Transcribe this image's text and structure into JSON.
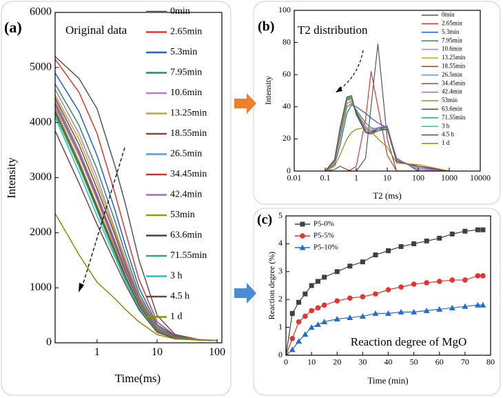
{
  "chart_data": [
    {
      "type": "line",
      "panel_label": "(a)",
      "title": "Original data",
      "x_label": "Time(ms)",
      "y_label": "Intensity",
      "xscale": "log",
      "xlim": [
        0.2,
        120
      ],
      "xticks": [
        1,
        10,
        100
      ],
      "ylim": [
        0,
        6000
      ],
      "yticks": [
        0,
        1000,
        2000,
        3000,
        4000,
        5000,
        6000
      ],
      "x": [
        0.2,
        0.5,
        1,
        2,
        3,
        5,
        10,
        20,
        50,
        100
      ],
      "series": [
        {
          "name": "0min",
          "color": "#555555",
          "values": [
            5200,
            4800,
            4250,
            3200,
            2500,
            1500,
            500,
            150,
            60,
            40
          ]
        },
        {
          "name": "2.65min",
          "color": "#e8322e",
          "values": [
            5150,
            4550,
            3800,
            2700,
            2000,
            1150,
            380,
            130,
            60,
            40
          ]
        },
        {
          "name": "5.3min",
          "color": "#1f5fd0",
          "values": [
            4900,
            4200,
            3400,
            2400,
            1750,
            1000,
            330,
            120,
            60,
            40
          ]
        },
        {
          "name": "7.95min",
          "color": "#2e8b57",
          "values": [
            4700,
            3950,
            3150,
            2200,
            1600,
            900,
            300,
            110,
            60,
            40
          ]
        },
        {
          "name": "10.6min",
          "color": "#b57bd6",
          "values": [
            4600,
            3800,
            3000,
            2050,
            1500,
            850,
            280,
            100,
            60,
            40
          ]
        },
        {
          "name": "13.25min",
          "color": "#d4a017",
          "values": [
            4500,
            3700,
            2900,
            2000,
            1450,
            820,
            270,
            100,
            60,
            40
          ]
        },
        {
          "name": "18.55min",
          "color": "#7a4a3a",
          "values": [
            4450,
            3600,
            2800,
            1950,
            1400,
            800,
            260,
            100,
            55,
            40
          ]
        },
        {
          "name": "26.5min",
          "color": "#5b9bd5",
          "values": [
            4400,
            3500,
            2700,
            1850,
            1350,
            780,
            250,
            95,
            55,
            40
          ]
        },
        {
          "name": "34.45min",
          "color": "#c0392b",
          "values": [
            4350,
            3450,
            2650,
            1800,
            1300,
            750,
            240,
            95,
            55,
            40
          ]
        },
        {
          "name": "42.4min",
          "color": "#9b6bd6",
          "values": [
            4300,
            3400,
            2600,
            1750,
            1250,
            720,
            230,
            90,
            55,
            40
          ]
        },
        {
          "name": "53min",
          "color": "#9a9a00",
          "values": [
            4250,
            3300,
            2500,
            1700,
            1200,
            700,
            220,
            90,
            55,
            40
          ]
        },
        {
          "name": "63.6min",
          "color": "#444444",
          "values": [
            4200,
            3250,
            2450,
            1650,
            1180,
            680,
            210,
            85,
            50,
            40
          ]
        },
        {
          "name": "71.55min",
          "color": "#2eaa6e",
          "values": [
            4150,
            3200,
            2400,
            1600,
            1150,
            660,
            200,
            85,
            50,
            40
          ]
        },
        {
          "name": "3 h",
          "color": "#20c0c0",
          "values": [
            4100,
            3100,
            2300,
            1550,
            1100,
            630,
            200,
            80,
            50,
            40
          ]
        },
        {
          "name": "4.5 h",
          "color": "#7a4040",
          "values": [
            3850,
            2900,
            2150,
            1450,
            1050,
            600,
            190,
            80,
            50,
            40
          ]
        },
        {
          "name": "1 d",
          "color": "#8b8b00",
          "values": [
            2350,
            1600,
            1100,
            800,
            600,
            380,
            150,
            70,
            50,
            40
          ]
        }
      ]
    },
    {
      "type": "line",
      "panel_label": "(b)",
      "title": "T2 distribution",
      "x_label": "T2 (ms)",
      "y_label": "Intensity",
      "xscale": "log",
      "xlim": [
        0.01,
        10000
      ],
      "xticks": [
        0.01,
        0.1,
        1,
        10,
        100,
        1000,
        10000
      ],
      "ylim": [
        0,
        100
      ],
      "yticks": [
        0,
        20,
        40,
        60,
        80,
        100
      ],
      "x": [
        0.1,
        0.2,
        0.3,
        0.5,
        0.7,
        1,
        2,
        3,
        5,
        10,
        20,
        100,
        1000
      ],
      "series": [
        {
          "name": "0min",
          "color": "#555555",
          "values": [
            0,
            1,
            3,
            1,
            0,
            0,
            8,
            40,
            79,
            20,
            0,
            0,
            0
          ]
        },
        {
          "name": "2.65min",
          "color": "#e8322e",
          "values": [
            0,
            0,
            0,
            0,
            1,
            3,
            32,
            62,
            40,
            10,
            0,
            0,
            0
          ]
        },
        {
          "name": "5.3min",
          "color": "#1f5fd0",
          "values": [
            0,
            4,
            16,
            36,
            41,
            40,
            36,
            33,
            30,
            27,
            8,
            0,
            0
          ]
        },
        {
          "name": "7.95min",
          "color": "#2e8b57",
          "values": [
            0,
            5,
            20,
            40,
            42,
            38,
            30,
            27,
            26,
            26,
            7,
            1,
            0
          ]
        },
        {
          "name": "10.6min",
          "color": "#b57bd6",
          "values": [
            0,
            5,
            22,
            42,
            43,
            37,
            28,
            26,
            27,
            27,
            7,
            1,
            0
          ]
        },
        {
          "name": "13.25min",
          "color": "#d4a017",
          "values": [
            0,
            5,
            22,
            42,
            44,
            37,
            27,
            25,
            26,
            27,
            7,
            2,
            0
          ]
        },
        {
          "name": "18.55min",
          "color": "#7a4a3a",
          "values": [
            0,
            6,
            24,
            44,
            45,
            37,
            26,
            25,
            26,
            28,
            7,
            2,
            0
          ]
        },
        {
          "name": "26.5min",
          "color": "#5b9bd5",
          "values": [
            0,
            6,
            24,
            45,
            45,
            36,
            26,
            25,
            27,
            28,
            7,
            2,
            0
          ]
        },
        {
          "name": "34.45min",
          "color": "#c0392b",
          "values": [
            0,
            6,
            25,
            45,
            45,
            36,
            25,
            24,
            27,
            28,
            7,
            2,
            0
          ]
        },
        {
          "name": "42.4min",
          "color": "#9b6bd6",
          "values": [
            0,
            6,
            25,
            45,
            45,
            36,
            25,
            24,
            27,
            28,
            7,
            2,
            0
          ]
        },
        {
          "name": "53min",
          "color": "#9a9a00",
          "values": [
            0,
            7,
            26,
            46,
            45,
            35,
            24,
            24,
            26,
            27,
            6,
            3,
            0
          ]
        },
        {
          "name": "63.6min",
          "color": "#444444",
          "values": [
            0,
            7,
            26,
            46,
            46,
            35,
            24,
            24,
            26,
            27,
            6,
            3,
            0
          ]
        },
        {
          "name": "71.55min",
          "color": "#2eaa6e",
          "values": [
            0,
            7,
            26,
            46,
            46,
            35,
            24,
            23,
            26,
            27,
            6,
            3,
            0
          ]
        },
        {
          "name": "3 h",
          "color": "#20c0c0",
          "values": [
            0,
            7,
            26,
            45,
            46,
            35,
            24,
            23,
            25,
            26,
            6,
            3,
            0
          ]
        },
        {
          "name": "4.5 h",
          "color": "#7a4040",
          "values": [
            0,
            7,
            27,
            46,
            47,
            36,
            24,
            23,
            25,
            26,
            6,
            3,
            0
          ]
        },
        {
          "name": "1 d",
          "color": "#8b8b00",
          "values": [
            0,
            3,
            10,
            20,
            24,
            26,
            27,
            25,
            20,
            15,
            5,
            4,
            0
          ]
        }
      ]
    },
    {
      "type": "line",
      "panel_label": "(c)",
      "annotation": "Reaction degree of MgO",
      "x_label": "Time (min)",
      "y_label": "Reaction degree (%)",
      "xscale": "linear",
      "xlim": [
        0,
        80
      ],
      "xticks": [
        0,
        10,
        20,
        30,
        40,
        50,
        60,
        70,
        80
      ],
      "ylim": [
        0,
        5
      ],
      "yticks": [
        0,
        1,
        2,
        3,
        4,
        5
      ],
      "x": [
        0,
        2.5,
        5,
        7.5,
        10,
        12.5,
        15,
        20,
        25,
        30,
        35,
        40,
        45,
        50,
        55,
        60,
        65,
        70,
        75,
        77
      ],
      "series": [
        {
          "name": "P5-0%",
          "color": "#404040",
          "marker": "square",
          "values": [
            0,
            1.5,
            1.9,
            2.2,
            2.5,
            2.65,
            2.8,
            3.0,
            3.2,
            3.35,
            3.6,
            3.75,
            3.9,
            4.0,
            4.1,
            4.2,
            4.35,
            4.45,
            4.5,
            4.5
          ]
        },
        {
          "name": "P5-5%",
          "color": "#e8322e",
          "marker": "circle",
          "values": [
            0,
            0.6,
            1.2,
            1.4,
            1.6,
            1.7,
            1.8,
            1.95,
            2.05,
            2.1,
            2.2,
            2.35,
            2.45,
            2.55,
            2.6,
            2.65,
            2.7,
            2.7,
            2.85,
            2.85
          ]
        },
        {
          "name": "P5-10%",
          "color": "#1f6fd0",
          "marker": "triangle",
          "values": [
            0,
            0.2,
            0.5,
            0.75,
            1.0,
            1.1,
            1.2,
            1.3,
            1.35,
            1.4,
            1.5,
            1.5,
            1.55,
            1.55,
            1.6,
            1.65,
            1.7,
            1.75,
            1.8,
            1.8
          ]
        }
      ]
    }
  ]
}
